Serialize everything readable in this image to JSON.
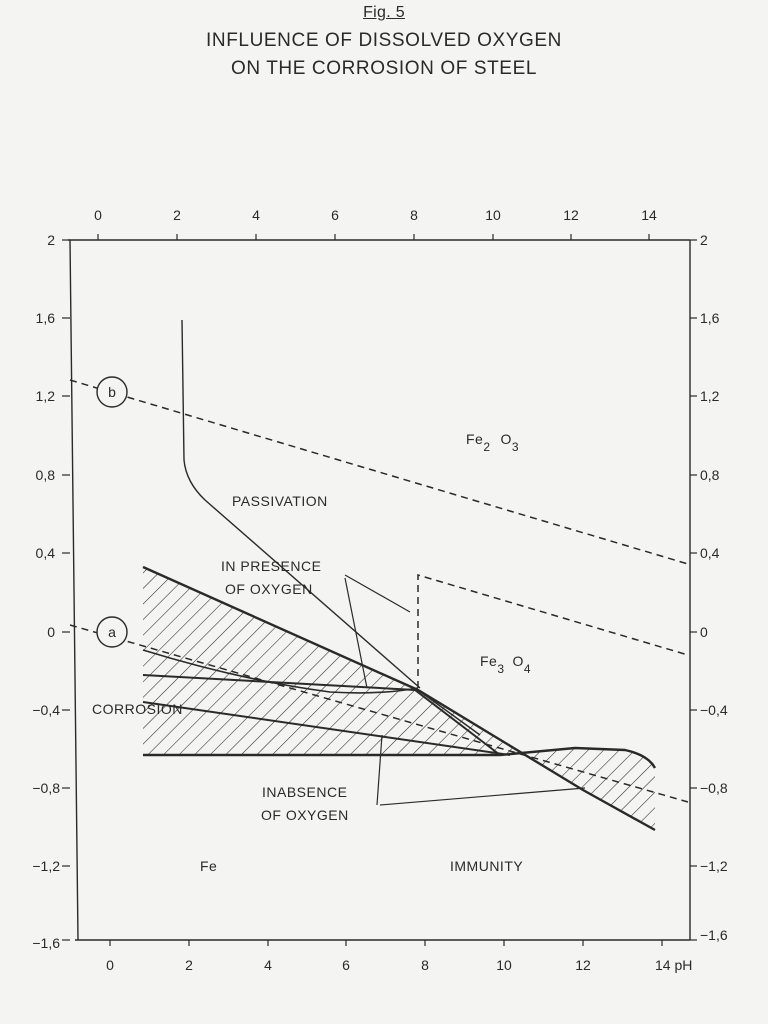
{
  "header": {
    "fig_label": "Fig. 5",
    "title_lines": [
      "INFLUENCE OF DISSOLVED OXYGEN",
      "ON THE CORROSION OF STEEL"
    ]
  },
  "axes": {
    "x_min": 0,
    "x_max": 14,
    "y_min": -1.6,
    "y_max": 2,
    "x_ticks_top": [
      "0",
      "2",
      "4",
      "6",
      "8",
      "10",
      "12",
      "14"
    ],
    "x_ticks_bottom": [
      "0",
      "2",
      "4",
      "6",
      "8",
      "10",
      "12",
      "14 pH"
    ],
    "y_ticks": [
      "2",
      "1,6",
      "1,2",
      "0,8",
      "0,4",
      "0",
      "−0,4",
      "−0,8",
      "−1,2",
      "−1,6"
    ]
  },
  "region_labels": {
    "passivation": "PASSIVATION",
    "corrosion": "CORROSION",
    "immunity": "IMMUNITY",
    "fe": "Fe",
    "fe2o3": {
      "base": "Fe",
      "sub": "2",
      "mid": "O",
      "sub2": "3"
    },
    "fe3o4": {
      "base": "Fe",
      "sub": "3",
      "mid": "O",
      "sub2": "4"
    }
  },
  "annotations": {
    "presence_line1": "IN PRESENCE",
    "presence_line2": "OF OXYGEN",
    "absence_line1": "INABSENCE",
    "absence_line2": "OF OXYGEN"
  },
  "line_markers": {
    "b": "b",
    "a": "a"
  },
  "colors": {
    "ink": "#2a2a2a",
    "paper": "#f4f4f2"
  }
}
